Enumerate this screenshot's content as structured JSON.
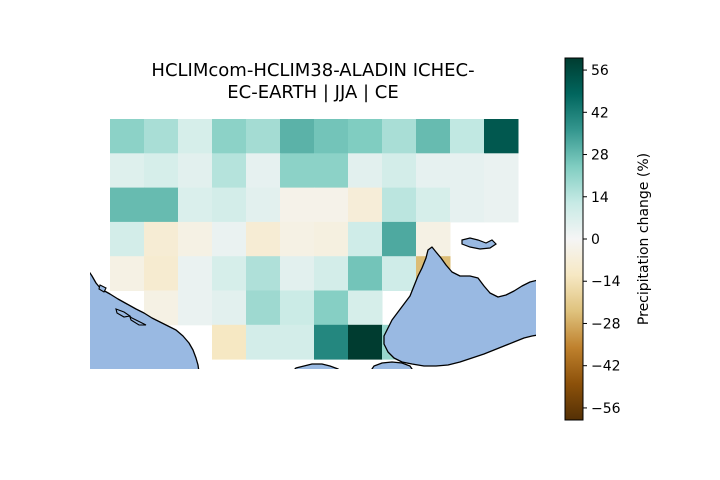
{
  "title_lines": [
    "HCLIMcom-HCLIM38-ALADIN ICHEC-",
    "EC-EARTH | JJA | CE"
  ],
  "colorbar": {
    "label": "Precipitation change (%)",
    "ticks": [
      56,
      42,
      28,
      14,
      0,
      -14,
      -28,
      -42,
      -56
    ],
    "tick_labels": [
      "56",
      "42",
      "28",
      "14",
      "0",
      "−14",
      "−28",
      "−42",
      "−56"
    ],
    "vmin": -60,
    "vmax": 60,
    "colormap": "BrBG",
    "stops": [
      "#543005",
      "#8c510a",
      "#bf812d",
      "#dfc27d",
      "#f6e8c3",
      "#f5f5f5",
      "#c7eae5",
      "#80cdc1",
      "#35978f",
      "#01665e",
      "#003c30"
    ]
  },
  "colors": {
    "sea": "#99b9e2",
    "coast": "#000000"
  },
  "chart_data": {
    "type": "heatmap",
    "title": "HCLIMcom-HCLIM38-ALADIN ICHEC-EC-EARTH | JJA | CE",
    "variable": "Precipitation change (%)",
    "rows": 7,
    "cols": 12,
    "values": [
      [
        22,
        17,
        8,
        22,
        18,
        30,
        26,
        24,
        17,
        28,
        13,
        52
      ],
      [
        6,
        8,
        5,
        15,
        4,
        22,
        22,
        5,
        9,
        4,
        4,
        3
      ],
      [
        28,
        28,
        7,
        9,
        5,
        -3,
        -3,
        -7,
        14,
        8,
        4,
        3
      ],
      [
        9,
        -8,
        -4,
        3,
        -8,
        -4,
        -5,
        10,
        32,
        -4,
        null,
        null
      ],
      [
        -4,
        -9,
        3,
        8,
        16,
        5,
        9,
        26,
        10,
        -25,
        null,
        null
      ],
      [
        null,
        -4,
        3,
        5,
        19,
        11,
        23,
        8,
        null,
        null,
        null,
        null
      ],
      [
        null,
        null,
        null,
        -12,
        9,
        9,
        40,
        60,
        20,
        null,
        null,
        null
      ]
    ]
  }
}
